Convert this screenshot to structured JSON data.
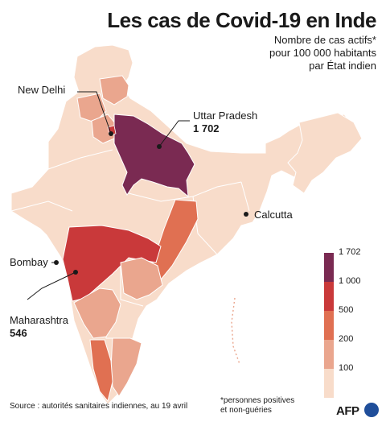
{
  "title": "Les cas de Covid-19 en Inde",
  "subtitle_lines": [
    "Nombre de cas actifs*",
    "pour 100 000 habitants",
    "par État indien"
  ],
  "labels": {
    "new_delhi": "New Delhi",
    "uttar_pradesh": "Uttar Pradesh",
    "uttar_pradesh_value": "1 702",
    "calcutta": "Calcutta",
    "bombay": "Bombay",
    "maharashtra": "Maharashtra",
    "maharashtra_value": "546"
  },
  "legend": {
    "ticks": [
      "1 702",
      "1 000",
      "500",
      "200",
      "100"
    ],
    "colors": [
      "#7a2a52",
      "#c9393a",
      "#e07052",
      "#eaa68e",
      "#f8dcca"
    ]
  },
  "colors": {
    "base": "#f8dcca",
    "light": "#eaa68e",
    "mid": "#e07052",
    "high": "#c9393a",
    "top": "#7a2a52",
    "border": "#ffffff"
  },
  "footer": {
    "source": "Source : autorités sanitaires indiennes, au 19 avril",
    "note_lines": [
      "*personnes positives",
      "et non-guéries"
    ],
    "logo": "AFP"
  }
}
